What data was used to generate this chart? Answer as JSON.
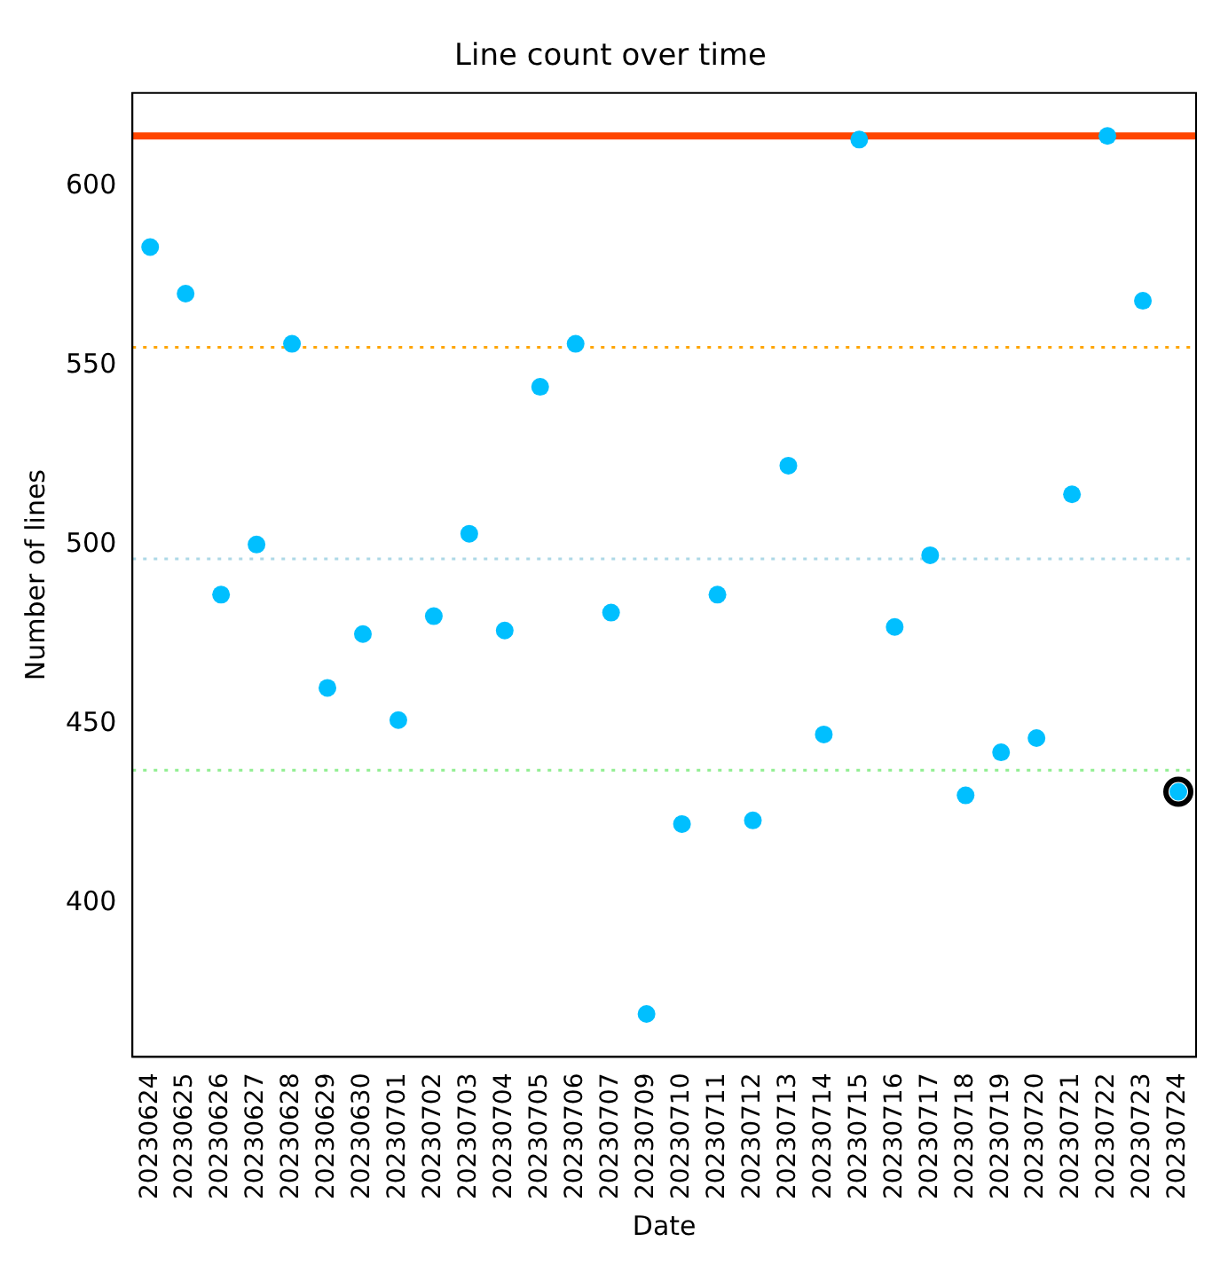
{
  "chart_data": {
    "type": "scatter",
    "title": "Line count over time",
    "xlabel": "Date",
    "ylabel": "Number of lines",
    "categories": [
      "20230624",
      "20230625",
      "20230626",
      "20230627",
      "20230628",
      "20230629",
      "20230630",
      "20230701",
      "20230702",
      "20230703",
      "20230704",
      "20230705",
      "20230706",
      "20230707",
      "20230709",
      "20230710",
      "20230711",
      "20230712",
      "20230713",
      "20230714",
      "20230715",
      "20230716",
      "20230717",
      "20230718",
      "20230719",
      "20230720",
      "20230721",
      "20230722",
      "20230723",
      "20230724"
    ],
    "series": [
      {
        "color": "#00bfff",
        "values": [
          583,
          570,
          486,
          500,
          556,
          460,
          475,
          451,
          480,
          503,
          476,
          544,
          556,
          481,
          369,
          422,
          486,
          423,
          522,
          447,
          613,
          477,
          497,
          430,
          442,
          446,
          514,
          614,
          568,
          431
        ]
      },
      {
        "color": "#000000",
        "values": [
          null,
          null,
          null,
          null,
          null,
          null,
          null,
          null,
          null,
          null,
          null,
          null,
          null,
          null,
          null,
          null,
          null,
          null,
          null,
          null,
          null,
          null,
          null,
          null,
          null,
          null,
          null,
          null,
          null,
          431
        ]
      }
    ],
    "ylim": [
      357,
      626
    ],
    "yticks": [
      400,
      450,
      500,
      550,
      600
    ],
    "grid": false,
    "legend": false,
    "marker": "circle",
    "ref_lines": [
      {
        "axis": "y",
        "value": 614,
        "color": "#ff4500",
        "line_style": "solid"
      },
      {
        "axis": "y",
        "value": 555,
        "color": "#ffa500",
        "line_style": "dotted"
      },
      {
        "axis": "y",
        "value": 496,
        "color": "#add8e6",
        "line_style": "dotted"
      },
      {
        "axis": "y",
        "value": 437,
        "color": "#90ee90",
        "line_style": "dotted"
      }
    ]
  }
}
